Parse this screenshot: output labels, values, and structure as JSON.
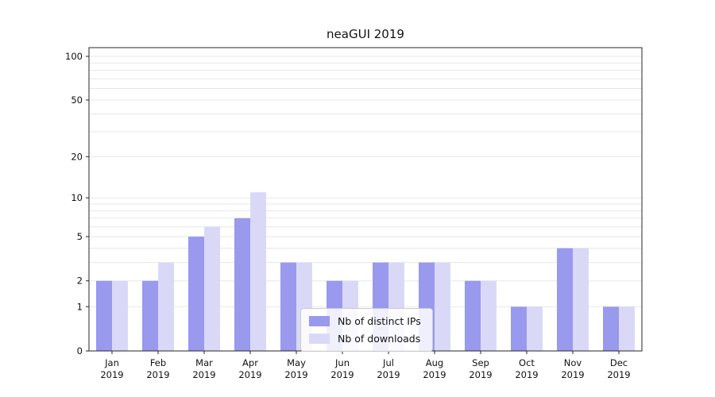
{
  "page": {
    "title": "neaGUI 2019"
  },
  "chart_data": {
    "type": "bar",
    "title": "neaGUI 2019",
    "xlabel": "",
    "ylabel": "",
    "categories": [
      "Jan 2019",
      "Feb 2019",
      "Mar 2019",
      "Apr 2019",
      "May 2019",
      "Jun 2019",
      "Jul 2019",
      "Aug 2019",
      "Sep 2019",
      "Oct 2019",
      "Nov 2019",
      "Dec 2019"
    ],
    "series": [
      {
        "name": "Nb of distinct IPs",
        "color": "#9999ee",
        "values": [
          2,
          2,
          5,
          7,
          3,
          2,
          3,
          3,
          2,
          1,
          4,
          1
        ]
      },
      {
        "name": "Nb of downloads",
        "color": "#d9d9f7",
        "values": [
          2,
          3,
          6,
          11,
          3,
          2,
          3,
          3,
          2,
          1,
          4,
          1
        ]
      }
    ],
    "yscale": "log1p",
    "ylim": [
      0,
      115
    ],
    "yticks": [
      0,
      1,
      2,
      5,
      10,
      20,
      50,
      100
    ],
    "gridlines": [
      1,
      2,
      3,
      4,
      5,
      6,
      7,
      8,
      9,
      10,
      20,
      30,
      40,
      50,
      60,
      70,
      80,
      90,
      100
    ],
    "grid": "on",
    "legend_position": "lower center inside",
    "bar_layout": "grouped pairs, adjacent, centered on category"
  }
}
